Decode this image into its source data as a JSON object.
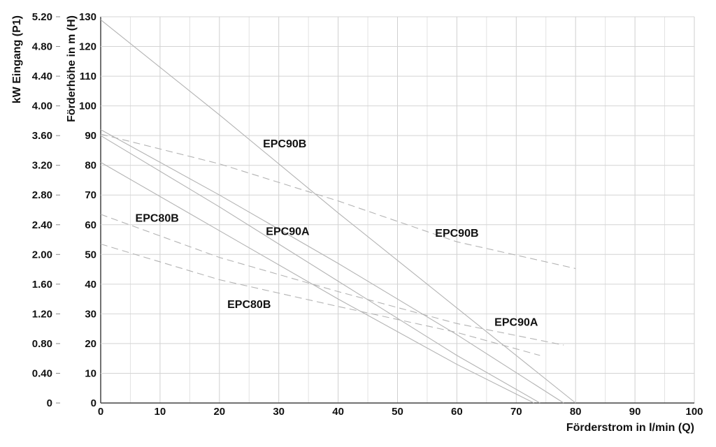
{
  "chart_data": {
    "type": "line",
    "title": "",
    "xlabel": "Förderstrom in l/min (Q)",
    "ylabel": "Förderhöhe in m (H)",
    "y2label": "kW Eingang (P1)",
    "xlim": [
      0,
      100
    ],
    "ylim": [
      0,
      130
    ],
    "y2lim": [
      0,
      5.2
    ],
    "x_ticks": [
      0,
      10,
      20,
      30,
      40,
      50,
      60,
      70,
      80,
      90,
      100
    ],
    "y_ticks": [
      0,
      10,
      20,
      30,
      40,
      50,
      60,
      70,
      80,
      90,
      100,
      110,
      120,
      130
    ],
    "y2_ticks": [
      "0",
      "0.40",
      "0.80",
      "1.20",
      "1.60",
      "2.00",
      "2.40",
      "2.80",
      "3.20",
      "3.60",
      "4.00",
      "4.40",
      "4.80",
      "5.20"
    ],
    "grid": true,
    "series": [
      {
        "name": "EPC90B",
        "kind": "head",
        "style": "solid",
        "x": [
          0,
          20,
          40,
          60,
          80
        ],
        "y": [
          129,
          97,
          64,
          32,
          0
        ]
      },
      {
        "name": "EPC90A",
        "kind": "head",
        "style": "solid",
        "x": [
          0,
          20,
          40,
          60,
          78
        ],
        "y": [
          92,
          70,
          47,
          23,
          0
        ]
      },
      {
        "name": "",
        "kind": "head",
        "style": "solid",
        "x": [
          0,
          20,
          40,
          60,
          74
        ],
        "y": [
          90,
          66,
          41,
          16,
          0
        ]
      },
      {
        "name": "EPC80B",
        "kind": "head",
        "style": "solid",
        "x": [
          0,
          20,
          40,
          60,
          73
        ],
        "y": [
          81,
          58,
          35,
          13,
          0
        ]
      },
      {
        "name": "EPC90B",
        "kind": "power",
        "style": "dashed",
        "x": [
          0,
          20,
          40,
          60,
          80
        ],
        "y": [
          3.62,
          3.22,
          2.72,
          2.17,
          1.81
        ]
      },
      {
        "name": "EPC90A",
        "kind": "power",
        "style": "dashed",
        "x": [
          0,
          20,
          40,
          60,
          78
        ],
        "y": [
          2.54,
          1.96,
          1.5,
          1.07,
          0.78
        ]
      },
      {
        "name": "EPC80B",
        "kind": "power",
        "style": "dashed",
        "x": [
          0,
          20,
          40,
          60,
          74
        ],
        "y": [
          2.14,
          1.66,
          1.3,
          0.95,
          0.64
        ]
      }
    ],
    "annotations": [
      {
        "text": "EPC90B",
        "x": 31,
        "y": 86
      },
      {
        "text": "EPC90B",
        "x": 60,
        "y": 56
      },
      {
        "text": "EPC80B",
        "x": 9.5,
        "y": 61
      },
      {
        "text": "EPC90A",
        "x": 31.5,
        "y": 56.5
      },
      {
        "text": "EPC80B",
        "x": 25,
        "y": 32
      },
      {
        "text": "EPC90A",
        "x": 70,
        "y": 26
      }
    ]
  }
}
